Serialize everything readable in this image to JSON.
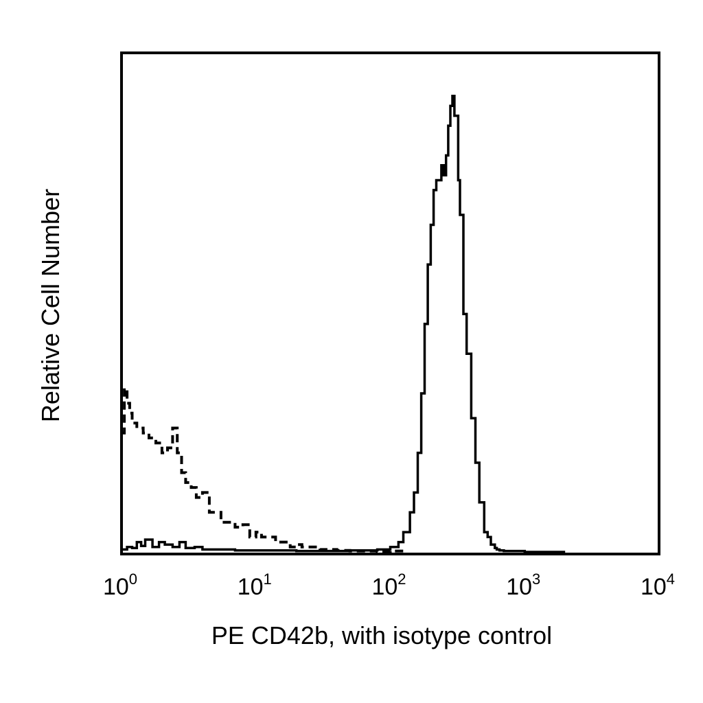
{
  "chart_data": {
    "type": "line",
    "title": "",
    "xlabel": "PE CD42b, with isotype control",
    "ylabel": "Relative Cell Number",
    "xscale": "log",
    "xlim": [
      1,
      10000
    ],
    "ylim": [
      0,
      100
    ],
    "grid": false,
    "legend": "none",
    "x_ticks": [
      {
        "base": "10",
        "exp": "0",
        "value": 1
      },
      {
        "base": "10",
        "exp": "1",
        "value": 10
      },
      {
        "base": "10",
        "exp": "2",
        "value": 100
      },
      {
        "base": "10",
        "exp": "3",
        "value": 1000
      },
      {
        "base": "10",
        "exp": "4",
        "value": 10000
      }
    ],
    "series": [
      {
        "style": "solid",
        "color": "#000000",
        "x": [
          1.0,
          1.1,
          1.2,
          1.3,
          1.4,
          1.5,
          1.7,
          1.9,
          2.1,
          2.4,
          2.7,
          3.0,
          3.5,
          4.0,
          5.0,
          7.0,
          10,
          20,
          50,
          80,
          100,
          115,
          125,
          140,
          150,
          160,
          170,
          180,
          190,
          200,
          210,
          220,
          240,
          250,
          260,
          270,
          280,
          290,
          300,
          320,
          330,
          350,
          370,
          400,
          430,
          460,
          500,
          530,
          560,
          600,
          620,
          650,
          700,
          1000,
          2000
        ],
        "y": [
          0.5,
          1.0,
          0.8,
          2.0,
          1.2,
          2.5,
          1.0,
          2.0,
          1.5,
          1.0,
          2.0,
          0.8,
          1.0,
          0.5,
          0.5,
          0.3,
          0.3,
          0.2,
          0.3,
          0.5,
          1.0,
          2.0,
          4.0,
          8.0,
          12.0,
          20.0,
          32.0,
          46.0,
          58.0,
          66.0,
          73.0,
          75.0,
          78.0,
          76.0,
          80.0,
          86.0,
          90.0,
          92.0,
          88.0,
          75.0,
          68.0,
          48.0,
          40.0,
          27.0,
          18.0,
          10.0,
          4.0,
          3.0,
          1.5,
          0.8,
          0.5,
          0.3,
          0.2,
          0.0,
          0.0
        ]
      },
      {
        "style": "dashed",
        "color": "#000000",
        "x": [
          1.0,
          1.05,
          1.1,
          1.15,
          1.2,
          1.3,
          1.45,
          1.6,
          1.8,
          2.0,
          2.2,
          2.4,
          2.6,
          2.8,
          3.0,
          3.3,
          3.6,
          4.0,
          4.5,
          5.0,
          5.5,
          6.0,
          7.0,
          8.0,
          9.0,
          10,
          11,
          12,
          14,
          16,
          18,
          20,
          22,
          25,
          30,
          35,
          40,
          50,
          60,
          80,
          100,
          130
        ],
        "y": [
          24.0,
          33.0,
          30.0,
          28.0,
          26.0,
          25.0,
          24.0,
          23.0,
          22.0,
          20.0,
          21.0,
          25.0,
          20.0,
          16.0,
          14.0,
          13.0,
          11.0,
          12.0,
          8.0,
          8.0,
          6.0,
          6.0,
          5.0,
          5.5,
          3.0,
          4.0,
          3.0,
          3.0,
          2.0,
          2.0,
          1.0,
          1.5,
          1.0,
          1.0,
          0.5,
          0.5,
          0.3,
          0.2,
          0.2,
          0.1,
          0.2,
          0.0
        ]
      }
    ]
  }
}
